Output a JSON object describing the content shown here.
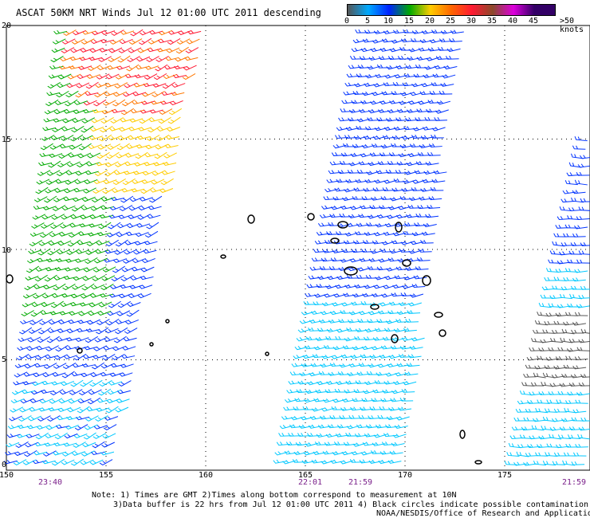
{
  "title": "ASCAT 50KM NRT Winds  Jul 12 01:00 UTC 2011 descending",
  "legend": {
    "colors": [
      "#555555",
      "#00aaff",
      "#0022ff",
      "#00aa00",
      "#ffcc00",
      "#ff6600",
      "#ff1a33",
      "#8b4a2a",
      "#dd00dd",
      "#330066"
    ],
    "labels": [
      "0",
      "5",
      "10",
      "15",
      "20",
      "25",
      "30",
      "35",
      "40",
      "45",
      ">50 knots"
    ],
    "unit": "knots"
  },
  "map": {
    "lat_labels": [
      "20",
      "15",
      "10",
      "5",
      "0"
    ],
    "lon_labels": [
      "150",
      "155",
      "160",
      "165",
      "170",
      "175"
    ],
    "pass_times": [
      {
        "label": "23:40",
        "lon": 152.2
      },
      {
        "label": "22:01",
        "lon": 165.2
      },
      {
        "label": "21:59",
        "lon": 167.8
      },
      {
        "label": "21:59",
        "lon": 178.8
      }
    ]
  },
  "notes": {
    "line1": "Note: 1) Times are GMT 2)Times along bottom correspond to measurement at 10N",
    "line2": "3)Data buffer is 22 hrs from Jul 12 01:00 UTC 2011 4) Black circles indicate possible contamination",
    "credit": "NOAA/NESDIS/Office of Research and Applications"
  }
}
